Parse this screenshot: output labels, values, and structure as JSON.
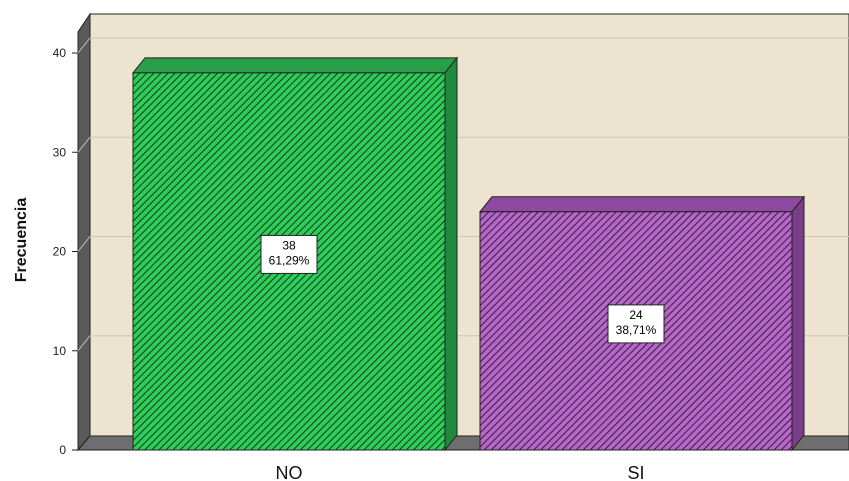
{
  "chart_data": {
    "type": "bar",
    "categories": [
      "NO",
      "SI"
    ],
    "values": [
      38,
      24
    ],
    "percent_labels": [
      "61,29%",
      "38,71%"
    ],
    "count_labels": [
      "38",
      "24"
    ],
    "ylabel": "Frecuencia",
    "xlabel": "",
    "ylim": [
      0,
      40
    ],
    "yticks": [
      "0",
      "10",
      "20",
      "30",
      "40"
    ],
    "grid": true,
    "legend": "none",
    "bar_colors": [
      "#2ecc5a",
      "#b567c7"
    ],
    "bar_side_colors": [
      "#1f8a3d",
      "#7a3d8a"
    ],
    "bar_top_colors": [
      "#2a9e49",
      "#8e4aa0"
    ],
    "plot_background": "#ece4cf"
  }
}
